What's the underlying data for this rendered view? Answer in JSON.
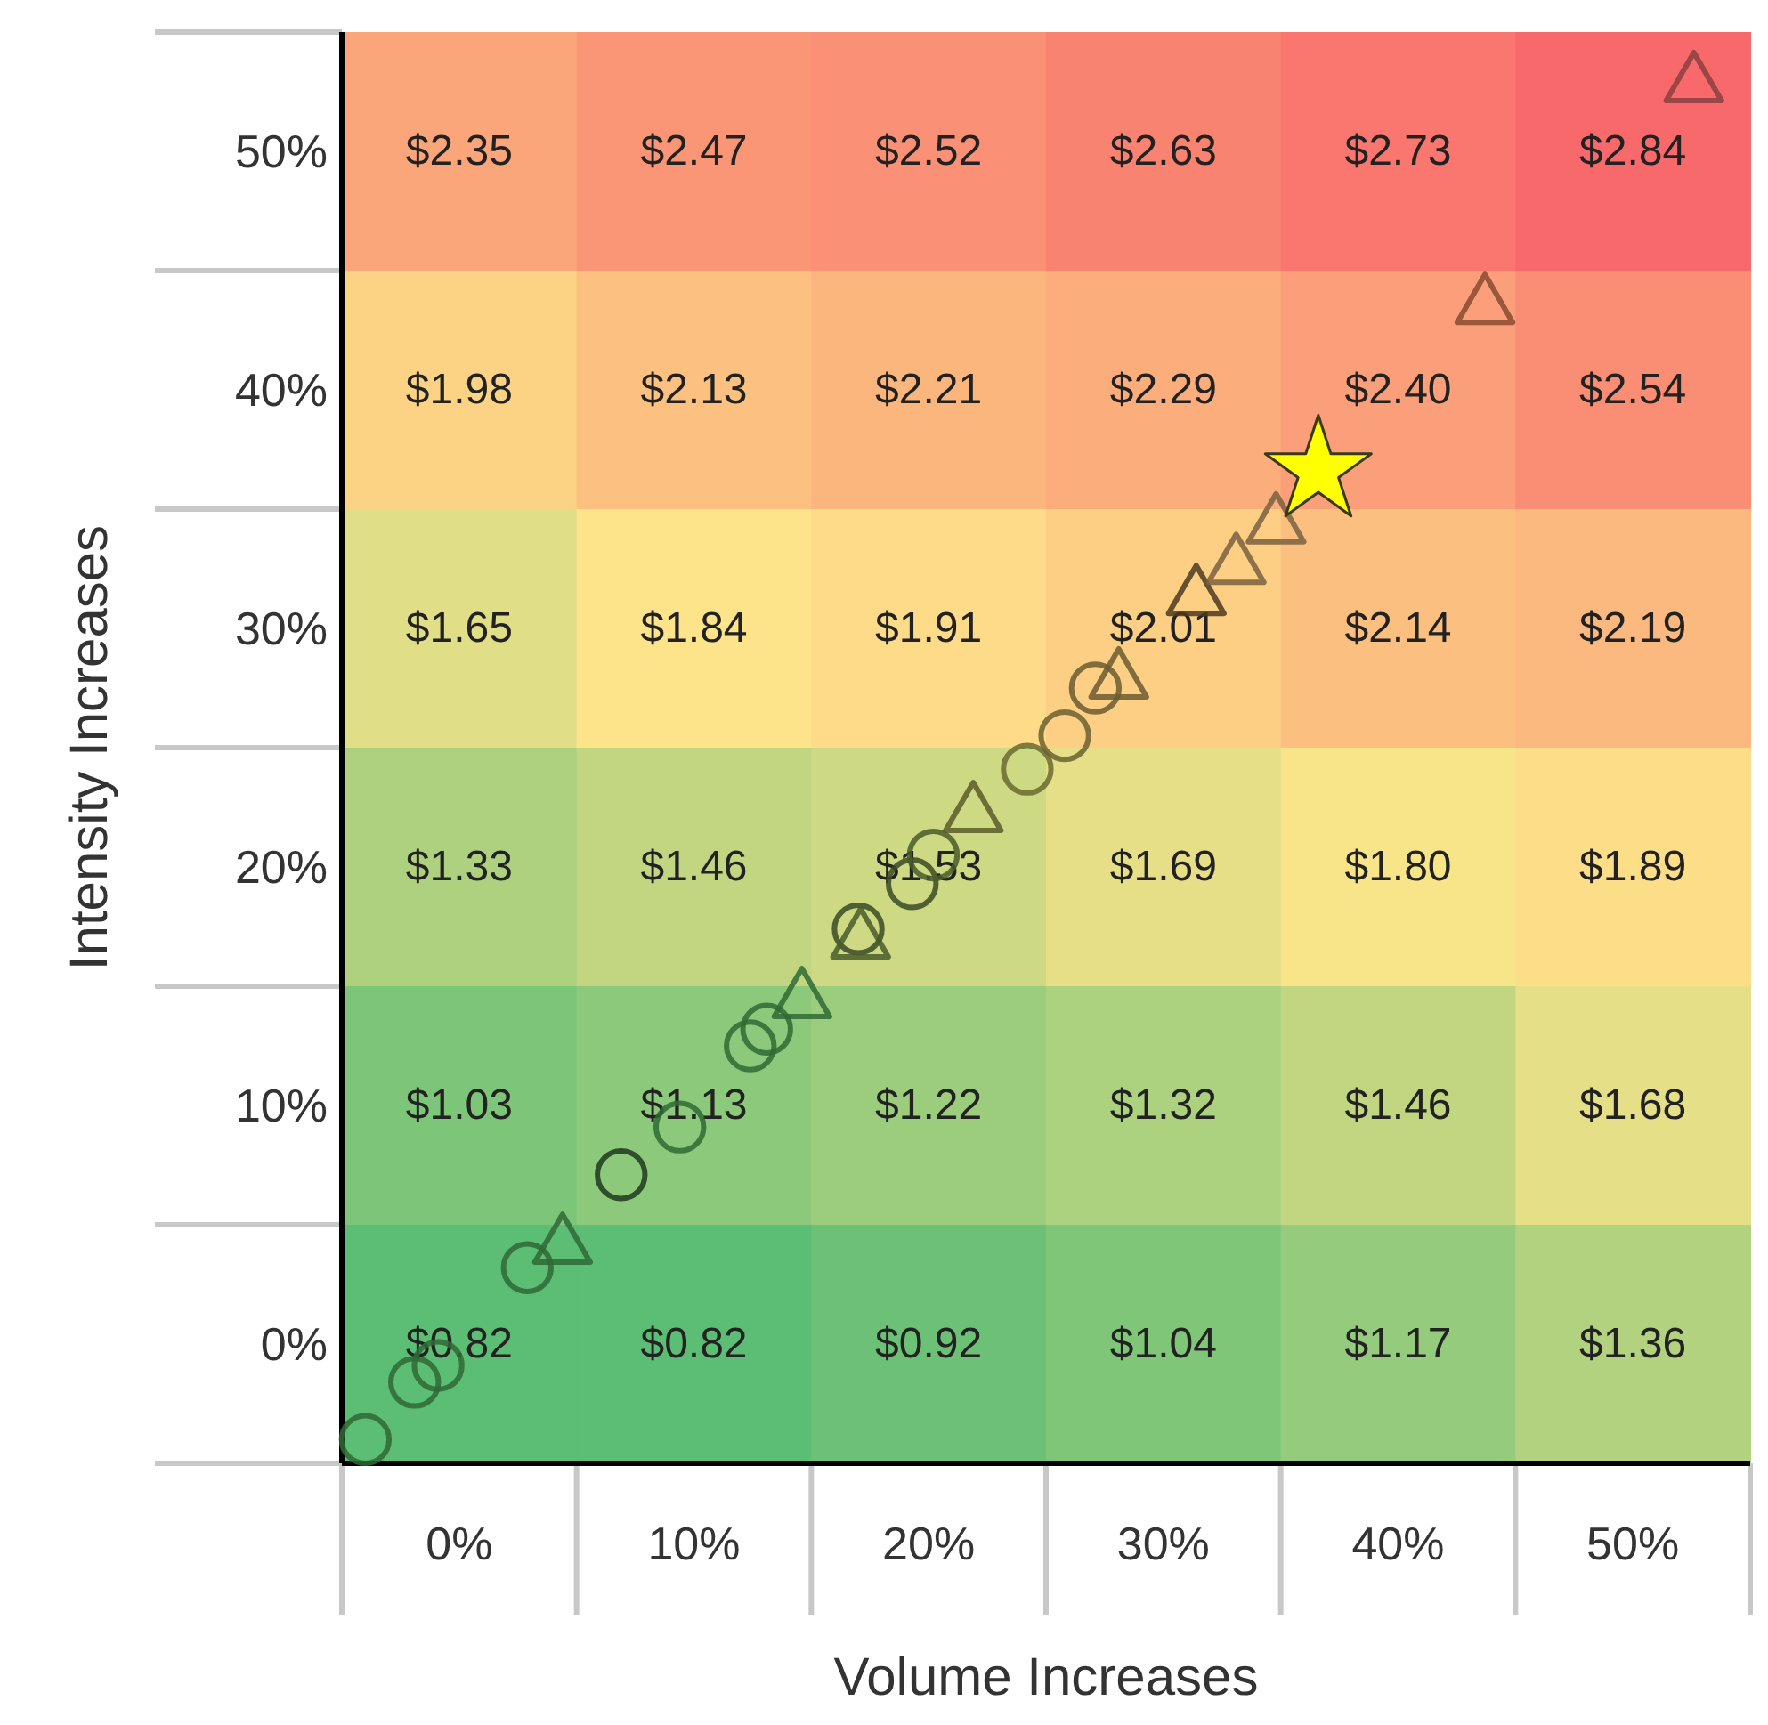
{
  "chart_data": {
    "type": "heatmap",
    "xlabel": "Volume Increases",
    "ylabel": "Intensity Increases",
    "xticks": [
      {
        "value": 0,
        "label": "0%"
      },
      {
        "value": 10,
        "label": "10%"
      },
      {
        "value": 20,
        "label": "20%"
      },
      {
        "value": 30,
        "label": "30%"
      },
      {
        "value": 40,
        "label": "40%"
      },
      {
        "value": 50,
        "label": "50%"
      }
    ],
    "yticks": [
      {
        "value": 0,
        "label": "0%"
      },
      {
        "value": 10,
        "label": "10%"
      },
      {
        "value": 20,
        "label": "20%"
      },
      {
        "value": 30,
        "label": "30%"
      },
      {
        "value": 40,
        "label": "40%"
      },
      {
        "value": 50,
        "label": "50%"
      }
    ],
    "cells": [
      [
        2.35,
        2.47,
        2.52,
        2.63,
        2.73,
        2.84
      ],
      [
        1.98,
        2.13,
        2.21,
        2.29,
        2.4,
        2.54
      ],
      [
        1.65,
        1.84,
        1.91,
        2.01,
        2.14,
        2.19
      ],
      [
        1.33,
        1.46,
        1.53,
        1.69,
        1.8,
        1.89
      ],
      [
        1.03,
        1.13,
        1.22,
        1.32,
        1.46,
        1.68
      ],
      [
        0.82,
        0.82,
        0.92,
        1.04,
        1.17,
        1.36
      ]
    ],
    "cell_labels": [
      [
        "$2.35",
        "$2.47",
        "$2.52",
        "$2.63",
        "$2.73",
        "$2.84"
      ],
      [
        "$1.98",
        "$2.13",
        "$2.21",
        "$2.29",
        "$2.40",
        "$2.54"
      ],
      [
        "$1.65",
        "$1.84",
        "$1.91",
        "$2.01",
        "$2.14",
        "$2.19"
      ],
      [
        "$1.33",
        "$1.46",
        "$1.53",
        "$1.69",
        "$1.80",
        "$1.89"
      ],
      [
        "$1.03",
        "$1.13",
        "$1.22",
        "$1.32",
        "$1.46",
        "$1.68"
      ],
      [
        "$0.82",
        "$0.82",
        "$0.92",
        "$1.04",
        "$1.17",
        "$1.36"
      ]
    ],
    "colors": [
      "#5cbd74",
      "#fde58a",
      "#f8696b"
    ],
    "xlim": [
      -5,
      55
    ],
    "ylim": [
      -5,
      55
    ],
    "series": [
      {
        "type": "scatter",
        "marker": "circle",
        "x": [
          -4,
          -1.9,
          -0.9,
          2.9,
          6.9,
          9.4,
          12.4,
          13.1,
          17.0,
          19.3,
          20.2,
          24.2,
          25.8,
          27.1
        ],
        "values": [
          -4,
          -1.6,
          -0.9,
          3.2,
          7.1,
          9.1,
          12.5,
          13.2,
          17.4,
          19.3,
          20.5,
          24.1,
          25.5,
          27.5
        ],
        "colors": [
          "#2f6a35",
          "#2f6a35",
          "#2f6a35",
          "#2f6a35",
          "#1f3a1f",
          "#2f6a35",
          "#2f6a35",
          "#2f6a35",
          "#3a4a25",
          "#3a4a25",
          "#4a5a2a",
          "#6a6a30",
          "#6a6030",
          "#6a5a30"
        ]
      },
      {
        "type": "scatter",
        "marker": "triangle",
        "x": [
          4.4,
          14.6,
          17.1,
          21.9,
          28.1,
          31.4,
          33.1,
          34.8,
          43.7,
          52.6
        ],
        "values": [
          4.1,
          14.4,
          16.9,
          22.2,
          27.8,
          31.3,
          32.6,
          34.3,
          43.5,
          52.8
        ],
        "colors": [
          "#2f6a35",
          "#2f6a35",
          "#4a5a2a",
          "#5a5a2a",
          "#6a5a30",
          "#4a3a20",
          "#7a6040",
          "#7a6040",
          "#8a4a30",
          "#8a4040"
        ]
      },
      {
        "type": "scatter",
        "marker": "star",
        "x": [
          36.6
        ],
        "values": [
          36.6
        ],
        "color": "#ffff00"
      }
    ]
  }
}
